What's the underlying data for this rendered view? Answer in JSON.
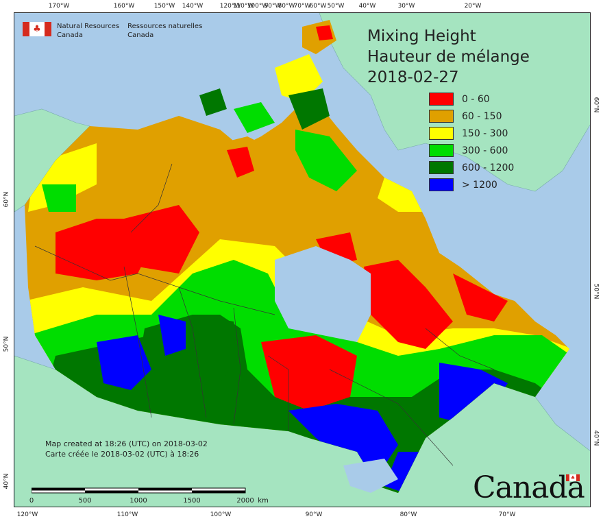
{
  "agency": {
    "en_line1": "Natural Resources",
    "en_line2": "Canada",
    "fr_line1": "Ressources naturelles",
    "fr_line2": "Canada"
  },
  "title": {
    "line1": "Mixing Height",
    "line2": "Hauteur de mélange",
    "date": "2018-02-27"
  },
  "legend": [
    {
      "label": "0 - 60",
      "color": "#ff0000"
    },
    {
      "label": "60 - 150",
      "color": "#e0a000"
    },
    {
      "label": "150 - 300",
      "color": "#ffff00"
    },
    {
      "label": "300 - 600",
      "color": "#00dd00"
    },
    {
      "label": "600 - 1200",
      "color": "#007700"
    },
    {
      "label": "> 1200",
      "color": "#0000ff"
    }
  ],
  "graticule": {
    "top": [
      "170°W",
      "160°W",
      "150°W",
      "140°W",
      "120°W",
      "110°W",
      "100°W",
      "90°W",
      "80°W",
      "70°W",
      "60°W",
      "50°W",
      "40°W",
      "30°W",
      "20°W"
    ],
    "bottom": [
      "120°W",
      "110°W",
      "100°W",
      "90°W",
      "80°W",
      "70°W"
    ],
    "left": [
      "60°N",
      "50°N",
      "40°N"
    ],
    "right": [
      "60°N",
      "50°N",
      "40°N"
    ]
  },
  "credit": {
    "en": "Map created at 18:26 (UTC) on 2018-03-02",
    "fr": "Carte créée le 2018-03-02 (UTC) à 18:26"
  },
  "scale": {
    "labels": [
      "0",
      "500",
      "1000",
      "1500",
      "2000",
      "km"
    ]
  },
  "wordmark": "Canada",
  "colors": {
    "ocean": "#a9cbe9",
    "other_land": "#a5e4c0",
    "border": "#333333"
  }
}
